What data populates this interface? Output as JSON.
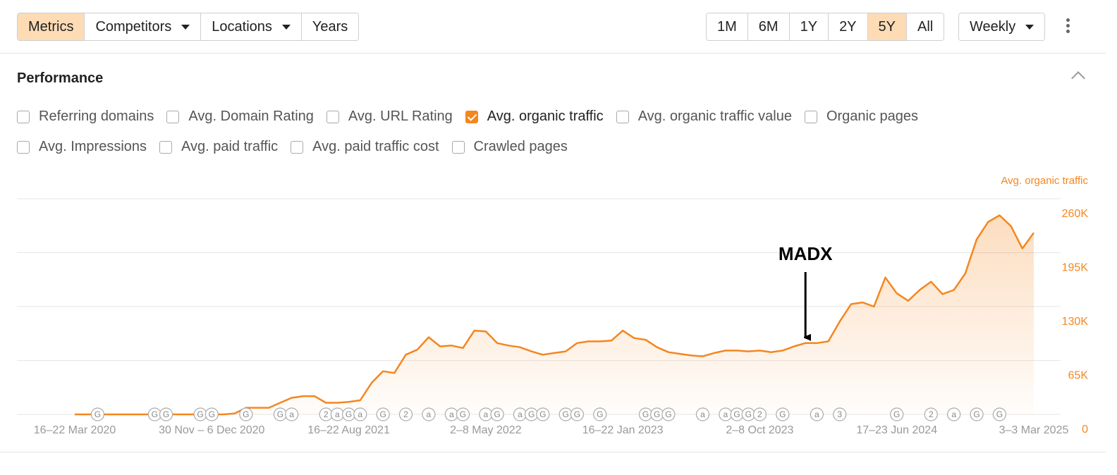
{
  "toolbar": {
    "tabs": [
      {
        "label": "Metrics",
        "dropdown": false
      },
      {
        "label": "Competitors",
        "dropdown": true
      },
      {
        "label": "Locations",
        "dropdown": true
      },
      {
        "label": "Years",
        "dropdown": false
      }
    ],
    "active_tab": 0,
    "ranges": [
      "1M",
      "6M",
      "1Y",
      "2Y",
      "5Y",
      "All"
    ],
    "active_range": 4,
    "interval": "Weekly"
  },
  "section": {
    "title": "Performance",
    "filters": [
      [
        {
          "label": "Referring domains",
          "checked": false
        },
        {
          "label": "Avg. Domain Rating",
          "checked": false
        },
        {
          "label": "Avg. URL Rating",
          "checked": false
        },
        {
          "label": "Avg. organic traffic",
          "checked": true
        },
        {
          "label": "Avg. organic traffic value",
          "checked": false
        },
        {
          "label": "Organic pages",
          "checked": false
        }
      ],
      [
        {
          "label": "Avg. Impressions",
          "checked": false
        },
        {
          "label": "Avg. paid traffic",
          "checked": false
        },
        {
          "label": "Avg. paid traffic cost",
          "checked": false
        },
        {
          "label": "Crawled pages",
          "checked": false
        }
      ]
    ]
  },
  "chart_data": {
    "type": "line",
    "categories": [
      "16–22 Mar 2020",
      null,
      null,
      null,
      null,
      null,
      null,
      null,
      null,
      null,
      null,
      null,
      "30 Nov – 6 Dec 2020",
      null,
      null,
      null,
      null,
      null,
      null,
      null,
      null,
      null,
      null,
      null,
      "16–22 Aug 2021",
      null,
      null,
      null,
      null,
      null,
      null,
      null,
      null,
      null,
      null,
      null,
      "2–8 May 2022",
      null,
      null,
      null,
      null,
      null,
      null,
      null,
      null,
      null,
      null,
      null,
      "16–22 Jan 2023",
      null,
      null,
      null,
      null,
      null,
      null,
      null,
      null,
      null,
      null,
      null,
      "2–8 Oct 2023",
      null,
      null,
      null,
      null,
      null,
      null,
      null,
      null,
      null,
      null,
      null,
      "17–23 Jun 2024",
      null,
      null,
      null,
      null,
      null,
      null,
      null,
      null,
      null,
      null,
      null,
      "3–3 Mar 2025"
    ],
    "series": [
      {
        "name": "Avg. organic traffic",
        "color": "#f5861f",
        "axis": "y2",
        "values": [
          0,
          0,
          0,
          0,
          0,
          0,
          0,
          0,
          0,
          0,
          0,
          0,
          0,
          0,
          1000,
          8000,
          8000,
          8000,
          14000,
          20000,
          22000,
          22000,
          14000,
          14000,
          15000,
          17000,
          38000,
          52000,
          50000,
          72000,
          78000,
          93000,
          82000,
          83000,
          80000,
          101000,
          100000,
          86000,
          83000,
          81000,
          76000,
          72000,
          74000,
          76000,
          86000,
          88000,
          88000,
          89000,
          101000,
          92000,
          90000,
          81000,
          75000,
          73000,
          71000,
          70000,
          74000,
          77000,
          77000,
          76000,
          77000,
          75000,
          77000,
          82000,
          86000,
          86000,
          88000,
          112000,
          133000,
          135000,
          130000,
          165000,
          146000,
          137000,
          150000,
          160000,
          145000,
          150000,
          170000,
          211000,
          232000,
          240000,
          227000,
          200000,
          219000
        ]
      }
    ],
    "y2lim": [
      0,
      260000
    ],
    "y2ticks": [
      0,
      {
        "value": 65000,
        "label": "65K"
      },
      {
        "value": 130000,
        "label": "130K"
      },
      {
        "value": 195000,
        "label": "195K"
      },
      {
        "value": 260000,
        "label": "260K"
      }
    ],
    "grid": true,
    "annotation": {
      "text": "MADX",
      "category": 64
    },
    "event_markers": [
      {
        "category": 2,
        "label": "G"
      },
      {
        "category": 7,
        "label": "G"
      },
      {
        "category": 8,
        "label": "G"
      },
      {
        "category": 11,
        "label": "G"
      },
      {
        "category": 12,
        "label": "G"
      },
      {
        "category": 15,
        "label": "G"
      },
      {
        "category": 18,
        "label": "G"
      },
      {
        "category": 19,
        "label": "a"
      },
      {
        "category": 22,
        "label": "2"
      },
      {
        "category": 23,
        "label": "a"
      },
      {
        "category": 24,
        "label": "G"
      },
      {
        "category": 25,
        "label": "a"
      },
      {
        "category": 27,
        "label": "G"
      },
      {
        "category": 29,
        "label": "2"
      },
      {
        "category": 31,
        "label": "a"
      },
      {
        "category": 33,
        "label": "a"
      },
      {
        "category": 34,
        "label": "G"
      },
      {
        "category": 36,
        "label": "a"
      },
      {
        "category": 37,
        "label": "G"
      },
      {
        "category": 39,
        "label": "a"
      },
      {
        "category": 40,
        "label": "G"
      },
      {
        "category": 41,
        "label": "G"
      },
      {
        "category": 43,
        "label": "G"
      },
      {
        "category": 44,
        "label": "G"
      },
      {
        "category": 46,
        "label": "G"
      },
      {
        "category": 50,
        "label": "G"
      },
      {
        "category": 51,
        "label": "G"
      },
      {
        "category": 52,
        "label": "G"
      },
      {
        "category": 55,
        "label": "a"
      },
      {
        "category": 57,
        "label": "a"
      },
      {
        "category": 58,
        "label": "G"
      },
      {
        "category": 59,
        "label": "G"
      },
      {
        "category": 60,
        "label": "2"
      },
      {
        "category": 62,
        "label": "G"
      },
      {
        "category": 65,
        "label": "a"
      },
      {
        "category": 67,
        "label": "3"
      },
      {
        "category": 72,
        "label": "G"
      },
      {
        "category": 75,
        "label": "2"
      },
      {
        "category": 77,
        "label": "a"
      },
      {
        "category": 79,
        "label": "G"
      },
      {
        "category": 81,
        "label": "G"
      }
    ]
  }
}
